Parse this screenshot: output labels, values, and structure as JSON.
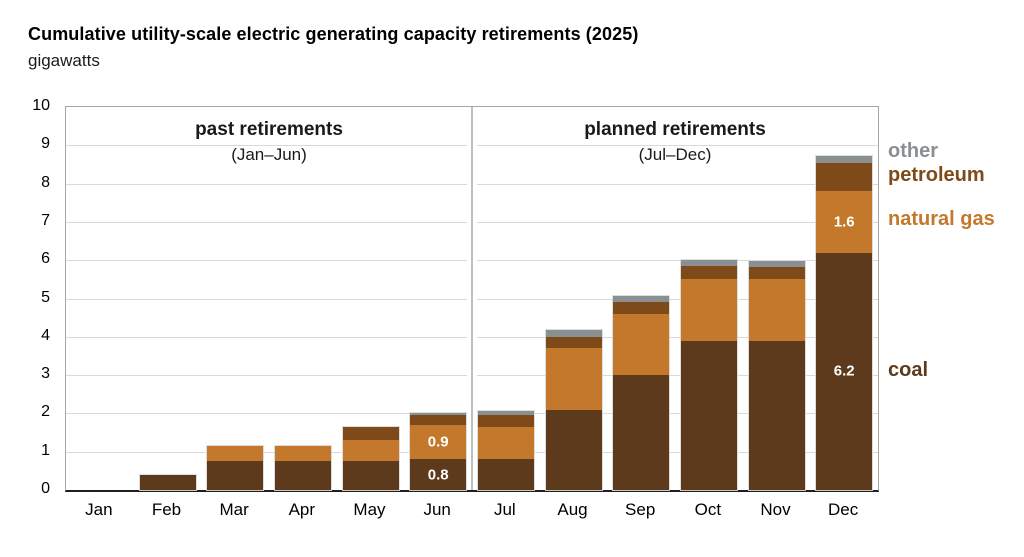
{
  "chart_data": {
    "type": "bar",
    "stacked": true,
    "title": "Cumulative utility-scale electric generating capacity retirements (2025)",
    "units": "gigawatts",
    "categories": [
      "Jan",
      "Feb",
      "Mar",
      "Apr",
      "May",
      "Jun",
      "Jul",
      "Aug",
      "Sep",
      "Oct",
      "Nov",
      "Dec"
    ],
    "series": [
      {
        "name": "coal",
        "color": "#5C3A1B",
        "values": [
          0,
          0.4,
          0.75,
          0.75,
          0.75,
          0.8,
          0.8,
          2.1,
          3.0,
          3.9,
          3.9,
          6.2
        ]
      },
      {
        "name": "natural gas",
        "color": "#C4782B",
        "values": [
          0,
          0,
          0.4,
          0.4,
          0.55,
          0.9,
          0.85,
          1.6,
          1.6,
          1.6,
          1.6,
          1.6
        ]
      },
      {
        "name": "petroleum",
        "color": "#7F4A1A",
        "values": [
          0,
          0,
          0,
          0,
          0.35,
          0.25,
          0.3,
          0.3,
          0.3,
          0.35,
          0.33,
          0.75
        ]
      },
      {
        "name": "other",
        "color": "#8A8F91",
        "values": [
          0,
          0,
          0,
          0,
          0,
          0.05,
          0.12,
          0.17,
          0.17,
          0.15,
          0.15,
          0.17
        ]
      }
    ],
    "ylim": [
      0,
      10
    ],
    "yticks": [
      0,
      1,
      2,
      3,
      4,
      5,
      6,
      7,
      8,
      9,
      10
    ],
    "grid": "horizontal",
    "legend_position": "right",
    "sections": [
      {
        "title": "past retirements",
        "subtitle": "(Jan–Jun)"
      },
      {
        "title": "planned retirements",
        "subtitle": "(Jul–Dec)"
      }
    ],
    "legend": [
      {
        "label": "other",
        "series": "other"
      },
      {
        "label": "petroleum",
        "series": "petroleum"
      },
      {
        "label": "natural gas",
        "series": "natural gas"
      },
      {
        "label": "coal",
        "series": "coal"
      }
    ],
    "bar_labels": [
      {
        "month": "Jun",
        "series": "natural gas",
        "text": "0.9"
      },
      {
        "month": "Jun",
        "series": "coal",
        "text": "0.8"
      },
      {
        "month": "Dec",
        "series": "natural gas",
        "text": "1.6"
      },
      {
        "month": "Dec",
        "series": "coal",
        "text": "6.2"
      }
    ]
  }
}
